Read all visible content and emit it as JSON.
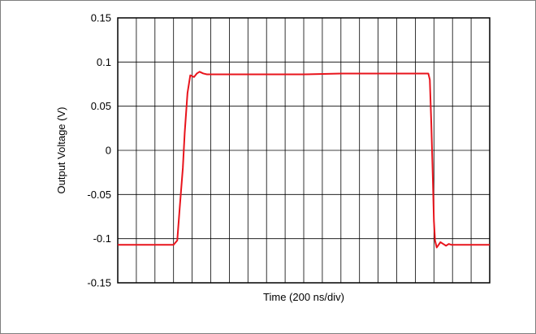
{
  "chart_data": {
    "type": "line",
    "title": "",
    "xlabel": "Time (200 ns/div)",
    "ylabel": "Output Voltage (V)",
    "ylim": [
      -0.15,
      0.15
    ],
    "xlim": [
      0,
      20
    ],
    "grid": true,
    "y_ticks": [
      {
        "value": 0.15,
        "label": "0.15"
      },
      {
        "value": 0.1,
        "label": "0.1"
      },
      {
        "value": 0.05,
        "label": "0.05"
      },
      {
        "value": 0,
        "label": "0"
      },
      {
        "value": -0.05,
        "label": "-0.05"
      },
      {
        "value": -0.1,
        "label": "-0.1"
      },
      {
        "value": -0.15,
        "label": "-0.15"
      }
    ],
    "x_divisions": 20,
    "series": [
      {
        "color": "#e8141c",
        "x": [
          0,
          2.8,
          3.0,
          3.2,
          3.35,
          3.5,
          3.6,
          3.75,
          3.9,
          4.1,
          4.25,
          4.4,
          4.6,
          4.8,
          5.0,
          5.2,
          6,
          8,
          10,
          12,
          14,
          16,
          16.7,
          16.78,
          16.86,
          16.94,
          17.0,
          17.06,
          17.15,
          17.25,
          17.35,
          17.5,
          17.65,
          17.8,
          17.95,
          18.1,
          18.3,
          18.5,
          19,
          20
        ],
        "y": [
          -0.107,
          -0.107,
          -0.107,
          -0.102,
          -0.06,
          -0.02,
          0.02,
          0.065,
          0.085,
          0.083,
          0.087,
          0.089,
          0.087,
          0.086,
          0.086,
          0.086,
          0.086,
          0.086,
          0.086,
          0.087,
          0.087,
          0.087,
          0.087,
          0.08,
          0.03,
          -0.03,
          -0.08,
          -0.102,
          -0.11,
          -0.107,
          -0.104,
          -0.106,
          -0.108,
          -0.106,
          -0.107,
          -0.107,
          -0.107,
          -0.107,
          -0.107,
          -0.107
        ]
      }
    ]
  }
}
